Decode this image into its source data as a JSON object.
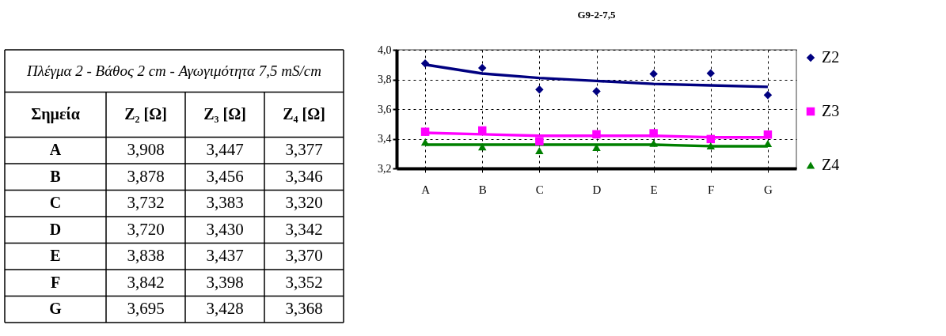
{
  "chart_data": [
    {
      "type": "other",
      "title": "Πλέγμα 2 - Βάθος 2 cm - Αγωγιμότητα 7,5 mS/cm",
      "categories": [
        "Σημεία",
        "Z₂ [Ω]",
        "Z₃ [Ω]",
        "Z₄ [Ω]"
      ],
      "annotations": [
        "A",
        "3,908",
        "3,447",
        "3,377",
        "B",
        "3,878",
        "3,456",
        "3,346",
        "C",
        "3,732",
        "3,383",
        "3,320",
        "D",
        "3,720",
        "3,430",
        "3,342",
        "E",
        "3,838",
        "3,437",
        "3,370",
        "F",
        "3,842",
        "3,398",
        "3,352",
        "G",
        "3,695",
        "3,428",
        "3,368"
      ]
    },
    {
      "type": "scatter",
      "title": "G9-2-7,5",
      "categories": [
        "A",
        "B",
        "C",
        "D",
        "E",
        "F",
        "G"
      ],
      "series": [
        {
          "name": "Z2",
          "color": "#000080",
          "marker": "diamond",
          "values": [
            3.908,
            3.878,
            3.732,
            3.72,
            3.838,
            3.842,
            3.695
          ]
        },
        {
          "name": "Z3",
          "color": "#ff00ff",
          "marker": "square",
          "values": [
            3.447,
            3.456,
            3.383,
            3.43,
            3.437,
            3.398,
            3.428
          ]
        },
        {
          "name": "Z4",
          "color": "#008000",
          "marker": "triangle",
          "values": [
            3.377,
            3.346,
            3.32,
            3.342,
            3.37,
            3.352,
            3.368
          ]
        },
        {
          "type": "line",
          "color": "#000080",
          "marker": "none",
          "values": [
            3.9,
            3.84,
            3.81,
            3.79,
            3.77,
            3.76,
            3.75
          ]
        },
        {
          "type": "line",
          "color": "#ff00ff",
          "marker": "none",
          "values": [
            3.44,
            3.43,
            3.42,
            3.42,
            3.42,
            3.41,
            3.41
          ]
        },
        {
          "type": "line",
          "color": "#008000",
          "marker": "none",
          "values": [
            3.36,
            3.36,
            3.36,
            3.36,
            3.36,
            3.35,
            3.35
          ]
        }
      ],
      "ylim": [
        3.2,
        4.0
      ],
      "yticks": [
        {
          "value": 3.2,
          "label": "3,2"
        },
        {
          "value": 3.4,
          "label": "3,4"
        },
        {
          "value": 3.6,
          "label": "3,6"
        },
        {
          "value": 3.8,
          "label": "3,8"
        },
        {
          "value": 4.0,
          "label": "4,0"
        }
      ],
      "grid": true,
      "legend": "right"
    }
  ]
}
